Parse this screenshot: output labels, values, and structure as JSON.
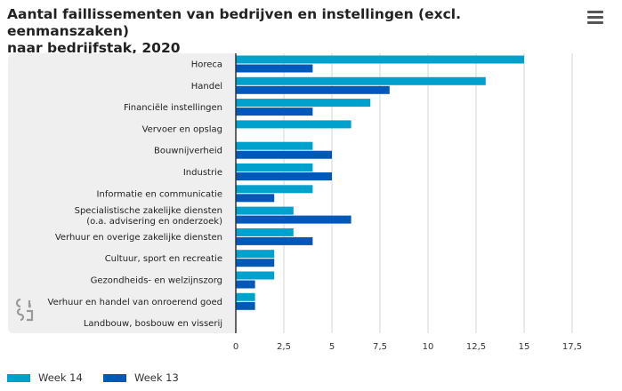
{
  "header": {
    "title_line1": "Aantal faillissementen van bedrijven en instellingen (excl. eenmanszaken)",
    "title_line2": "naar bedrijfstak, 2020",
    "menu_icon": "hamburger-menu-icon"
  },
  "logo": {
    "icon": "cbs-logo-icon"
  },
  "colors": {
    "week14": "#00a1cd",
    "week13": "#0058b8",
    "plot_bg": "#efefef",
    "grid": "#d6d6d6"
  },
  "chart_data": {
    "type": "bar",
    "orientation": "horizontal",
    "categories": [
      [
        "Horeca"
      ],
      [
        "Handel"
      ],
      [
        "Financiële instellingen"
      ],
      [
        "Vervoer en opslag"
      ],
      [
        "Bouwnijverheid"
      ],
      [
        "Industrie"
      ],
      [
        "Informatie en communicatie"
      ],
      [
        "Specialistische zakelijke diensten",
        "(o.a. advisering en onderzoek)"
      ],
      [
        "Verhuur en overige zakelijke diensten"
      ],
      [
        "Cultuur, sport en recreatie"
      ],
      [
        "Gezondheids- en welzijnszorg"
      ],
      [
        "Verhuur en handel van onroerend goed"
      ],
      [
        "Landbouw, bosbouw en visserij"
      ]
    ],
    "series": [
      {
        "name": "Week 14",
        "values": [
          15,
          13,
          7,
          6,
          4,
          4,
          4,
          3,
          3,
          2,
          2,
          1,
          0
        ]
      },
      {
        "name": "Week 13",
        "values": [
          4,
          8,
          4,
          0,
          5,
          5,
          2,
          6,
          4,
          2,
          1,
          1,
          0
        ]
      }
    ],
    "xlim": [
      0,
      17.5
    ],
    "xticks": [
      0,
      2.5,
      5,
      7.5,
      10,
      12.5,
      15,
      17.5
    ],
    "xtick_labels": [
      "0",
      "2,5",
      "5",
      "7,5",
      "10",
      "12,5",
      "15",
      "17,5"
    ],
    "grid": true,
    "legend_position": "bottom-left"
  }
}
